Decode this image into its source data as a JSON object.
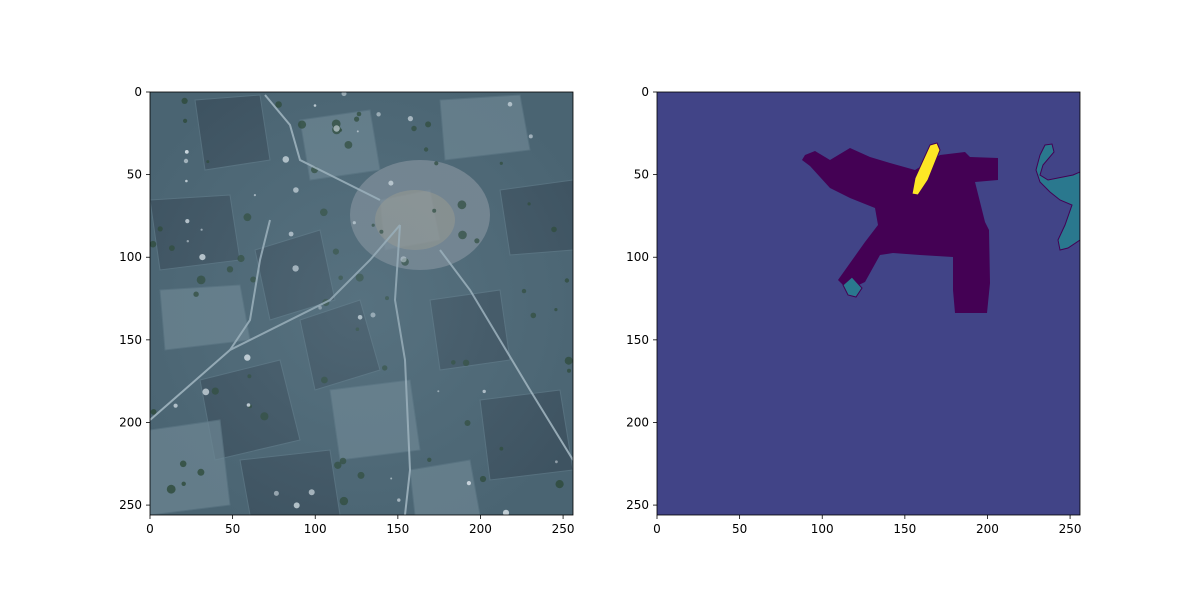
{
  "figure": {
    "background": "#ffffff"
  },
  "panels": [
    {
      "kind": "satellite-image",
      "xlim": [
        0,
        256
      ],
      "ylim": [
        256,
        0
      ],
      "xticks": [
        0,
        50,
        100,
        150,
        200,
        250
      ],
      "yticks": [
        0,
        50,
        100,
        150,
        200,
        250
      ],
      "colors": {
        "field_base": "#4a6472",
        "field_dark": "#3a4c5a",
        "field_light": "#6e8794",
        "road": "#a7bbc6",
        "vegetation": "#2d4a3a",
        "settlement": "#8a95a0"
      }
    },
    {
      "kind": "segmentation-mask",
      "xlim": [
        0,
        256
      ],
      "ylim": [
        256,
        0
      ],
      "xticks": [
        0,
        50,
        100,
        150,
        200,
        250
      ],
      "yticks": [
        0,
        50,
        100,
        150,
        200,
        250
      ],
      "colors": {
        "background_class": "#414487",
        "class_dark": "#440154",
        "class_teal": "#2a788e",
        "class_yellow": "#fde725"
      }
    }
  ]
}
